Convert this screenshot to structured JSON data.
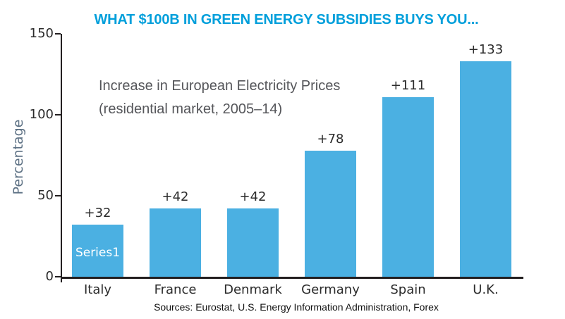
{
  "title": {
    "text": "WHAT $100B IN GREEN ENERGY SUBSIDIES BUYS YOU...",
    "color": "#009fdb"
  },
  "annotation": {
    "line1": "Increase in European Electricity Prices",
    "line2": "(residential market, 2005–14)"
  },
  "source_note": "Sources: Eurostat, U.S. Energy Information Administration, Forex",
  "chart_data": {
    "type": "bar",
    "categories": [
      "Italy",
      "France",
      "Denmark",
      "Germany",
      "Spain",
      "U.K."
    ],
    "values": [
      32,
      42,
      42,
      78,
      111,
      133
    ],
    "value_labels": [
      "+32",
      "+42",
      "+42",
      "+78",
      "+111",
      "+133"
    ],
    "series_name": "Series1",
    "series_label_position": "inside-first-bar",
    "title": "WHAT $100B IN GREEN ENERGY SUBSIDIES BUYS YOU...",
    "subtitle": "Increase in European Electricity Prices (residential market, 2005–14)",
    "xlabel": "",
    "ylabel": "Percentage",
    "ylim": [
      0,
      150
    ],
    "yticks": [
      0,
      50,
      100,
      150
    ],
    "grid": false,
    "bar_color": "#4bb0e2",
    "axis_color": "#231f20",
    "label_color": "#2b2b2b",
    "ylabel_color": "#5d7184",
    "annotation_color": "#55565a"
  }
}
